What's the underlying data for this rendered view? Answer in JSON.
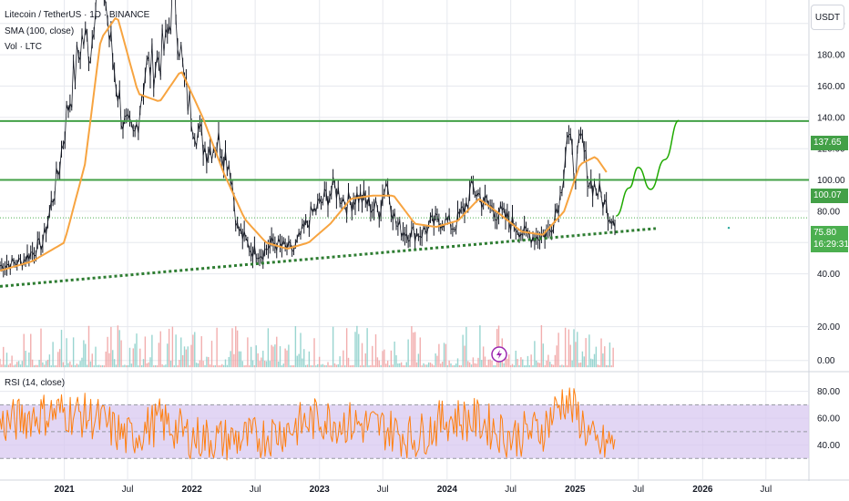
{
  "legend": {
    "title": "Litecoin / TetherUS · 1D · BINANCE",
    "sma": "SMA (100, close)",
    "vol": "Vol · LTC",
    "rsi": "RSI (14, close)"
  },
  "currency_button": "USDT",
  "price_tags": {
    "upper": "137.65",
    "lower": "100.07",
    "last_price": "75.80",
    "countdown": "16:29:31"
  },
  "colors": {
    "candles": "#131722",
    "sma": "#f7a440",
    "support_lines": "#43a047",
    "trendline": "#2e7d32",
    "projection": "#1faa00",
    "rsi_line": "#ff7f0e",
    "rsi_band": "#d8c8f0",
    "grid": "#e6e8ee"
  },
  "chart_data": [
    {
      "type": "line",
      "panel": "price",
      "x_ticks": [
        "2021",
        "Jul",
        "2022",
        "Jul",
        "2023",
        "Jul",
        "2024",
        "Jul",
        "2025",
        "Jul",
        "2026",
        "Jul"
      ],
      "y_ticks": [
        40.0,
        60.0,
        80.0,
        100.0,
        120.0,
        140.0,
        160.0,
        180.0,
        200.0
      ],
      "ylim": [
        20,
        215
      ],
      "xlim": [
        "2020-07-01",
        "2026-11-01"
      ],
      "series": [
        {
          "values_kind": "close",
          "x": [
            "2020-07-01",
            "2020-09-01",
            "2020-11-01",
            "2020-12-15",
            "2021-01-10",
            "2021-02-20",
            "2021-03-20",
            "2021-04-10",
            "2021-05-10",
            "2021-06-20",
            "2021-07-20",
            "2021-08-20",
            "2021-09-20",
            "2021-10-20",
            "2021-11-10",
            "2021-12-10",
            "2022-01-10",
            "2022-02-10",
            "2022-03-20",
            "2022-04-20",
            "2022-05-10",
            "2022-06-20",
            "2022-07-20",
            "2022-08-20",
            "2022-09-20",
            "2022-10-20",
            "2022-11-10",
            "2022-12-10",
            "2023-01-15",
            "2023-02-15",
            "2023-03-20",
            "2023-04-20",
            "2023-05-20",
            "2023-06-20",
            "2023-07-10",
            "2023-08-10",
            "2023-09-15",
            "2023-10-20",
            "2023-11-20",
            "2023-12-20",
            "2024-01-20",
            "2024-02-20",
            "2024-03-15",
            "2024-04-20",
            "2024-05-20",
            "2024-06-20",
            "2024-07-20",
            "2024-08-10",
            "2024-09-20",
            "2024-10-20",
            "2024-11-20",
            "2024-12-10",
            "2024-12-31",
            "2025-01-20",
            "2025-02-10",
            "2025-03-01",
            "2025-03-20",
            "2025-04-10",
            "2025-04-25"
          ],
          "y": [
            45,
            48,
            60,
            105,
            145,
            190,
            185,
            260,
            190,
            135,
            125,
            170,
            175,
            185,
            225,
            160,
            135,
            120,
            125,
            110,
            70,
            55,
            53,
            60,
            57,
            55,
            65,
            78,
            88,
            95,
            85,
            90,
            85,
            80,
            100,
            70,
            66,
            66,
            72,
            75,
            70,
            82,
            95,
            85,
            80,
            75,
            70,
            65,
            64,
            67,
            90,
            130,
            105,
            125,
            100,
            95,
            88,
            78,
            75.8
          ]
        },
        {
          "name": "SMA (100, close)",
          "x": [
            "2020-07-01",
            "2020-10-01",
            "2021-01-01",
            "2021-03-01",
            "2021-04-15",
            "2021-06-01",
            "2021-08-01",
            "2021-10-01",
            "2021-12-01",
            "2022-02-01",
            "2022-04-01",
            "2022-06-01",
            "2022-08-01",
            "2022-10-01",
            "2022-12-01",
            "2023-02-01",
            "2023-04-01",
            "2023-06-01",
            "2023-08-01",
            "2023-10-01",
            "2023-12-01",
            "2024-02-01",
            "2024-04-01",
            "2024-06-01",
            "2024-08-01",
            "2024-10-01",
            "2024-12-01",
            "2025-01-15",
            "2025-03-01",
            "2025-04-01"
          ],
          "y": [
            42,
            48,
            60,
            110,
            190,
            205,
            155,
            150,
            170,
            140,
            105,
            75,
            60,
            56,
            60,
            72,
            88,
            90,
            90,
            72,
            70,
            74,
            88,
            78,
            67,
            65,
            80,
            110,
            115,
            105
          ]
        }
      ],
      "horizontal_lines": [
        137.65,
        100.07
      ],
      "trendline": {
        "x": [
          "2020-07-01",
          "2025-08-20"
        ],
        "y": [
          32,
          69
        ]
      },
      "projection": {
        "x": [
          "2025-04-28",
          "2025-06-05",
          "2025-07-01",
          "2025-08-05",
          "2025-09-15",
          "2025-10-25"
        ],
        "y": [
          77,
          95,
          108,
          94,
          113,
          138
        ]
      },
      "last_price": 75.8
    },
    {
      "type": "bar",
      "panel": "volume",
      "y_ticks": [
        0.0,
        20.0
      ],
      "ylim": [
        -5,
        30
      ]
    },
    {
      "type": "line",
      "panel": "rsi",
      "title": "RSI (14, close)",
      "y_ticks": [
        40.0,
        60.0,
        80.0
      ],
      "ylim": [
        20,
        92
      ],
      "band": [
        30,
        70
      ],
      "midline": 50,
      "x": [
        "2020-07-01",
        "2020-10-01",
        "2021-01-01",
        "2021-04-01",
        "2021-07-01",
        "2021-10-01",
        "2022-01-01",
        "2022-04-01",
        "2022-07-01",
        "2022-10-01",
        "2023-01-01",
        "2023-04-01",
        "2023-07-01",
        "2023-10-01",
        "2024-01-01",
        "2024-04-01",
        "2024-07-01",
        "2024-10-01",
        "2024-12-01",
        "2025-01-15",
        "2025-03-01",
        "2025-04-25"
      ],
      "y": [
        55,
        62,
        65,
        60,
        45,
        58,
        46,
        44,
        45,
        52,
        60,
        56,
        53,
        45,
        60,
        58,
        46,
        52,
        75,
        60,
        38,
        42
      ]
    }
  ]
}
